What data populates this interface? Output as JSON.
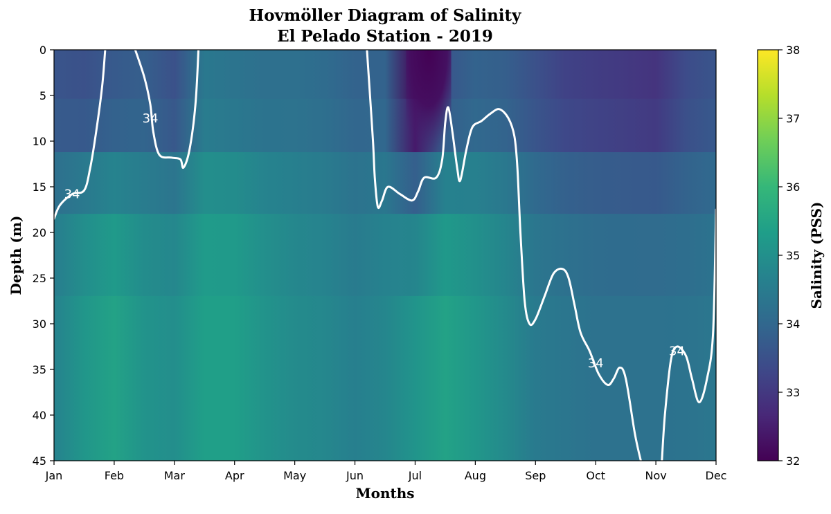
{
  "chart_data": {
    "type": "heatmap",
    "title": "Hovmöller Diagram of Salinity",
    "subtitle": "El Pelado Station - 2019",
    "xlabel": "Months",
    "ylabel": "Depth (m)",
    "x_tick_labels": [
      "Jan",
      "Feb",
      "Mar",
      "Apr",
      "May",
      "Jun",
      "Jul",
      "Aug",
      "Sep",
      "Oct",
      "Nov",
      "Dec"
    ],
    "y_ticks": [
      0,
      5,
      10,
      15,
      20,
      25,
      30,
      35,
      40,
      45
    ],
    "ylim": [
      45,
      0
    ],
    "xlim": [
      1,
      12
    ],
    "y_inverted": true,
    "colorbar": {
      "label": "Salinity (PSS)",
      "colormap": "viridis",
      "range": [
        32,
        38
      ],
      "ticks": [
        32,
        33,
        34,
        35,
        36,
        37,
        38
      ]
    },
    "colormap_colors": [
      "#440154",
      "#482878",
      "#3e4989",
      "#31688e",
      "#26828e",
      "#1f9e89",
      "#35b779",
      "#6ece58",
      "#b5de2b",
      "#fde725"
    ],
    "salinity_field": {
      "month": [
        1.0,
        1.5,
        2.0,
        2.5,
        3.0,
        3.5,
        4.0,
        4.5,
        5.0,
        5.5,
        6.0,
        6.5,
        7.0,
        7.5,
        8.0,
        8.5,
        9.0,
        9.5,
        10.0,
        10.5,
        11.0,
        11.5,
        12.0
      ],
      "surface_psu": [
        33.6,
        33.5,
        33.7,
        33.8,
        33.5,
        34.4,
        34.3,
        34.2,
        34.2,
        34.1,
        33.9,
        33.9,
        32.1,
        33.6,
        33.9,
        33.8,
        33.5,
        33.2,
        33.1,
        33.0,
        32.9,
        33.4,
        33.6
      ],
      "deep_psu": [
        34.7,
        35.2,
        35.5,
        35.1,
        35.0,
        35.4,
        35.4,
        35.1,
        34.9,
        34.8,
        34.6,
        34.8,
        35.2,
        35.5,
        35.2,
        34.9,
        34.5,
        34.4,
        34.3,
        34.3,
        34.3,
        34.3,
        34.4
      ]
    },
    "contours": [
      {
        "level": 34,
        "label": "34",
        "color": "#ffffff",
        "segments": [
          [
            [
              1.0,
              18.5
            ],
            [
              1.1,
              17.0
            ],
            [
              1.3,
              15.8
            ],
            [
              1.5,
              15.4
            ],
            [
              1.6,
              13.0
            ],
            [
              1.7,
              9.0
            ],
            [
              1.8,
              4.0
            ],
            [
              1.85,
              0.0
            ]
          ],
          [
            [
              2.35,
              0.0
            ],
            [
              2.5,
              3.0
            ],
            [
              2.6,
              6.0
            ],
            [
              2.65,
              9.0
            ],
            [
              2.75,
              11.5
            ],
            [
              2.95,
              11.8
            ],
            [
              3.1,
              12.0
            ],
            [
              3.15,
              12.9
            ],
            [
              3.25,
              11.0
            ],
            [
              3.35,
              6.0
            ],
            [
              3.4,
              0.0
            ]
          ],
          [
            [
              6.2,
              0.0
            ],
            [
              6.25,
              5.0
            ],
            [
              6.3,
              10.0
            ],
            [
              6.33,
              14.0
            ],
            [
              6.38,
              17.2
            ],
            [
              6.45,
              16.5
            ],
            [
              6.55,
              15.0
            ],
            [
              6.75,
              15.8
            ],
            [
              6.95,
              16.5
            ],
            [
              7.05,
              15.5
            ],
            [
              7.15,
              14.0
            ],
            [
              7.35,
              14.0
            ],
            [
              7.45,
              12.0
            ],
            [
              7.5,
              8.0
            ],
            [
              7.55,
              6.3
            ],
            [
              7.62,
              9.0
            ],
            [
              7.7,
              13.0
            ],
            [
              7.75,
              14.3
            ],
            [
              7.85,
              11.0
            ],
            [
              7.95,
              8.5
            ],
            [
              8.1,
              7.8
            ],
            [
              8.25,
              7.0
            ],
            [
              8.4,
              6.5
            ],
            [
              8.55,
              7.5
            ],
            [
              8.65,
              9.5
            ],
            [
              8.7,
              13.0
            ],
            [
              8.75,
              20.0
            ],
            [
              8.82,
              27.5
            ],
            [
              8.9,
              30.0
            ],
            [
              9.0,
              29.5
            ],
            [
              9.15,
              27.0
            ],
            [
              9.3,
              24.5
            ],
            [
              9.45,
              24.0
            ],
            [
              9.55,
              25.0
            ],
            [
              9.65,
              28.0
            ],
            [
              9.75,
              31.0
            ],
            [
              9.9,
              33.0
            ],
            [
              10.05,
              35.5
            ],
            [
              10.2,
              36.7
            ],
            [
              10.3,
              36.0
            ],
            [
              10.4,
              34.8
            ],
            [
              10.5,
              36.0
            ],
            [
              10.65,
              42.0
            ],
            [
              10.75,
              45.0
            ]
          ],
          [
            [
              11.1,
              45.0
            ],
            [
              11.15,
              40.0
            ],
            [
              11.25,
              34.0
            ],
            [
              11.35,
              32.5
            ],
            [
              11.5,
              33.5
            ],
            [
              11.6,
              36.0
            ],
            [
              11.72,
              38.6
            ],
            [
              11.85,
              36.0
            ],
            [
              11.95,
              31.0
            ],
            [
              12.0,
              17.5
            ]
          ]
        ],
        "labels_at": [
          [
            1.3,
            15.8
          ],
          [
            2.6,
            7.5
          ],
          [
            10.0,
            34.3
          ],
          [
            11.35,
            33.0
          ]
        ]
      }
    ]
  }
}
